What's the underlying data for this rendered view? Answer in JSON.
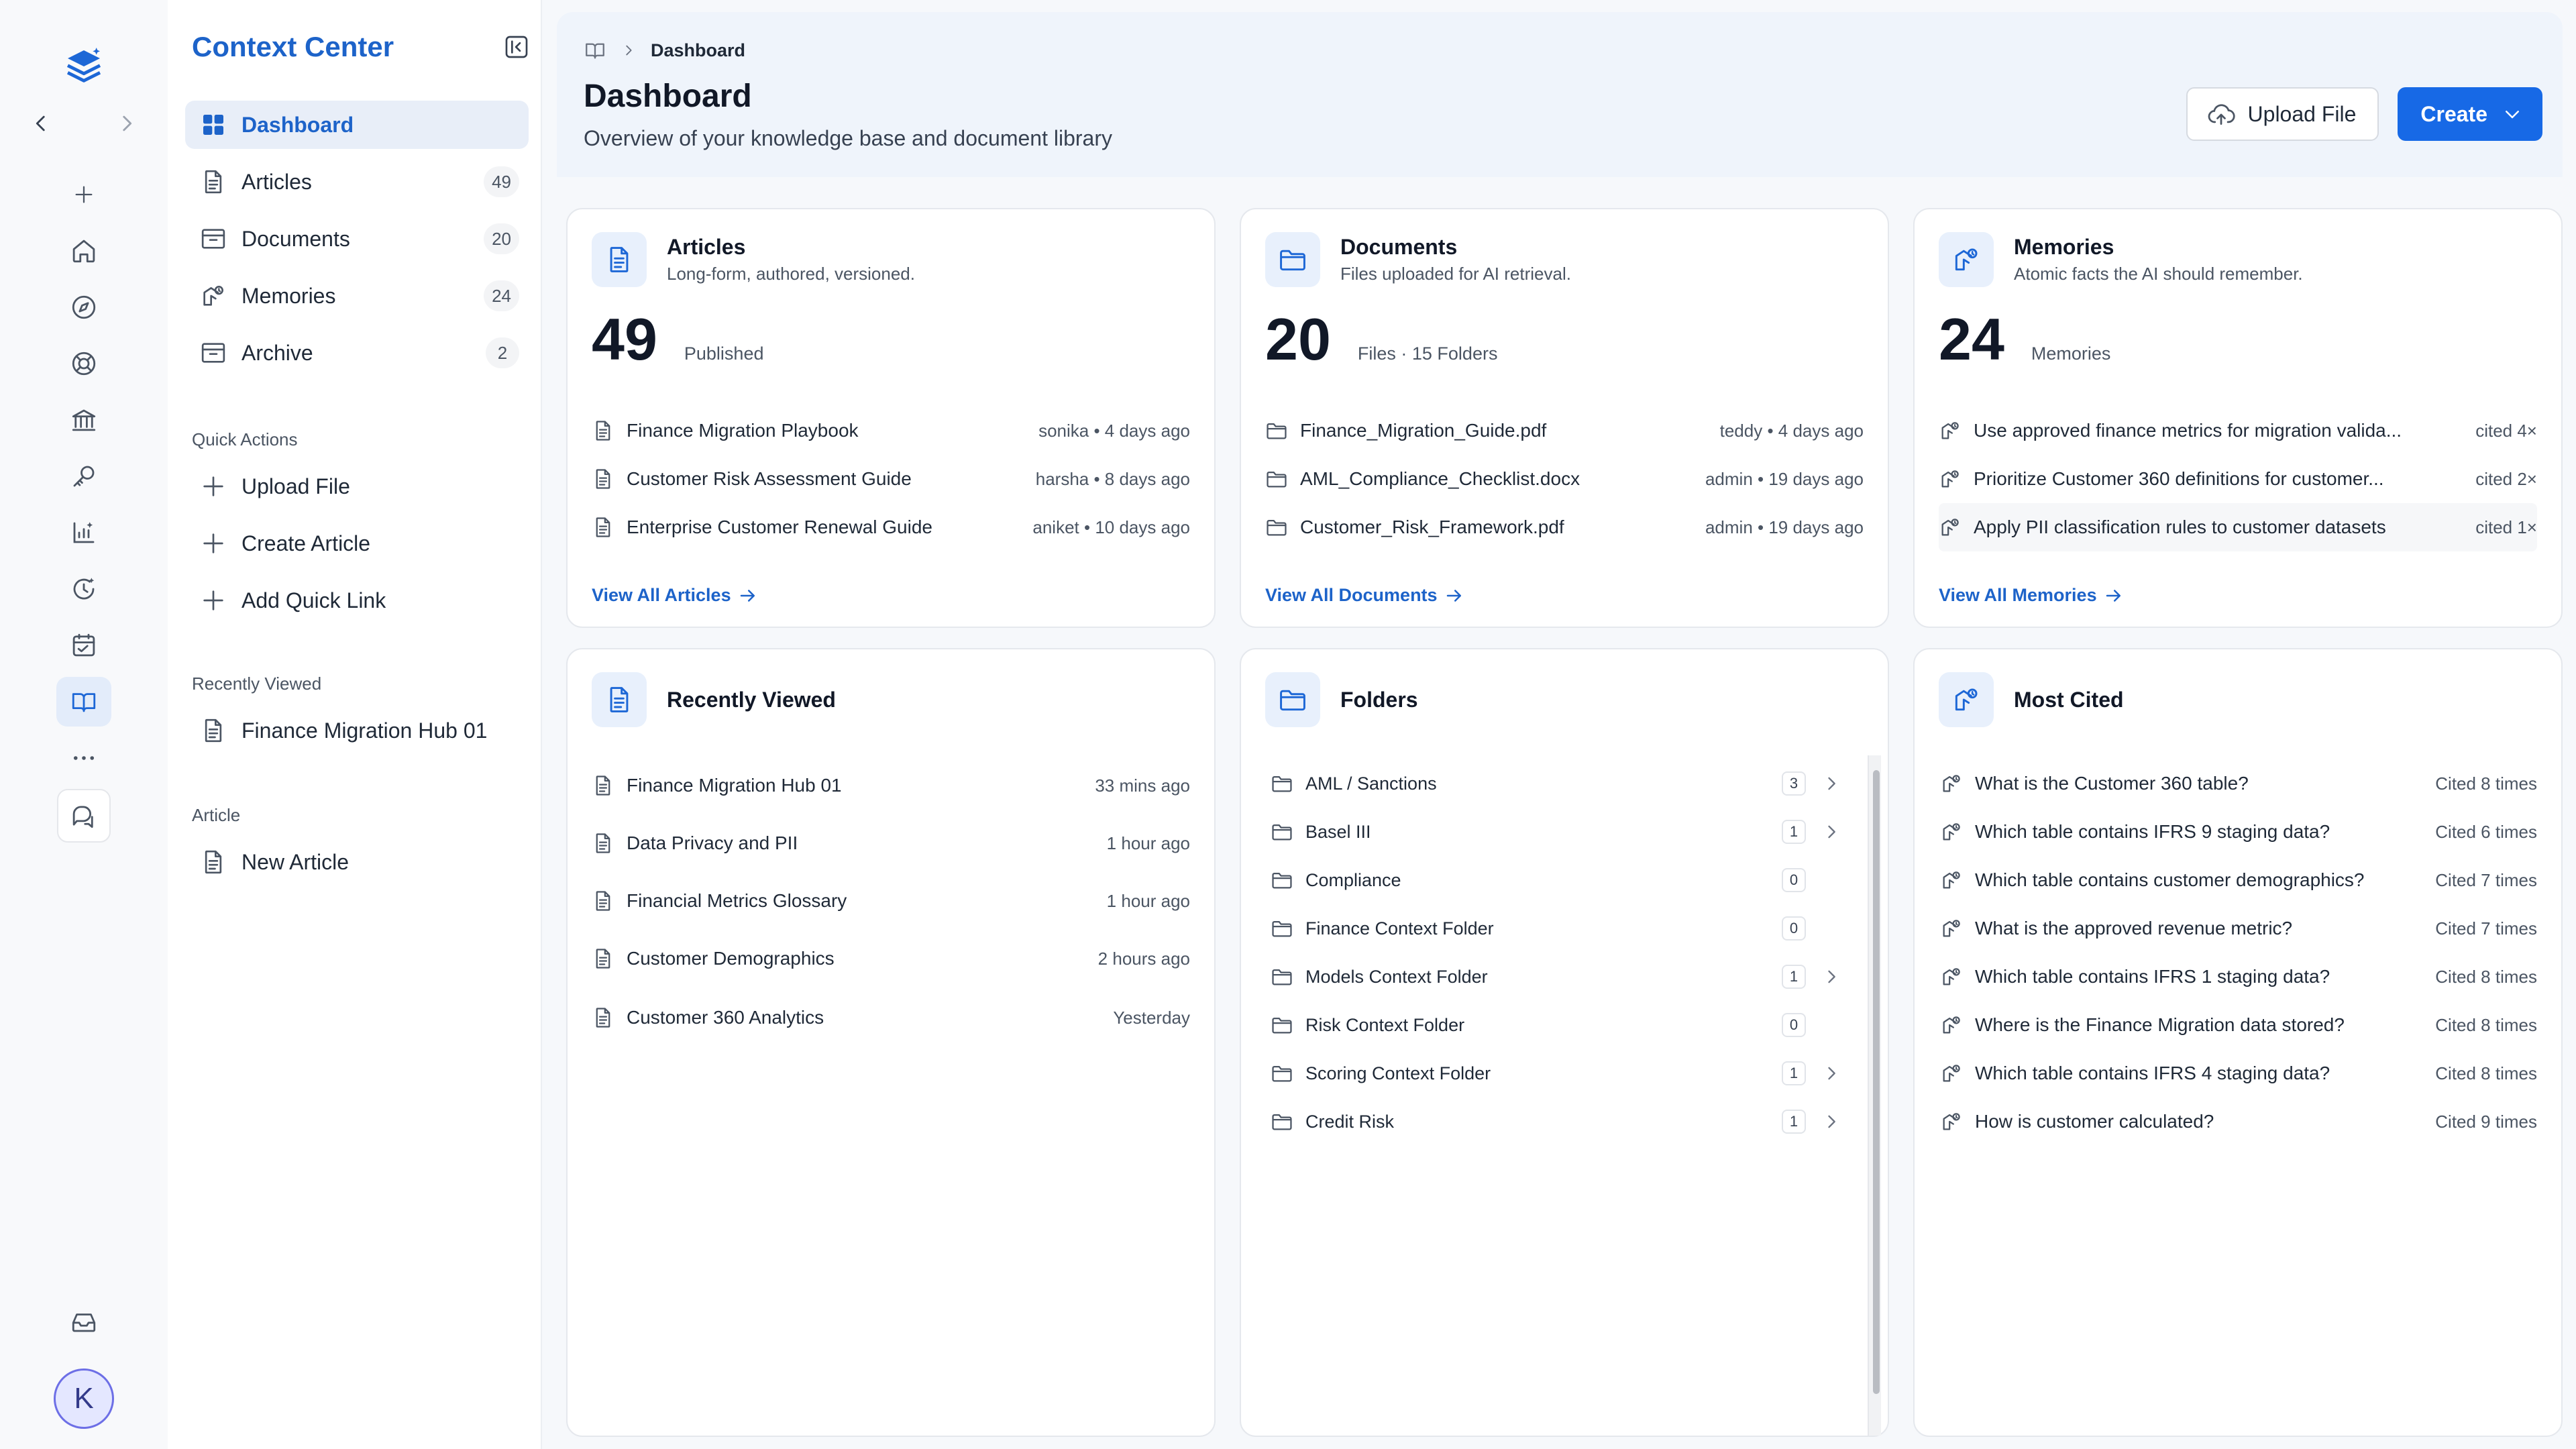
{
  "rail": {
    "logo": "stack-logo-icon",
    "icons": [
      "plus-icon",
      "home-icon",
      "compass-icon",
      "help-icon",
      "bank-icon",
      "key-icon",
      "analytics-icon",
      "history-icon",
      "calendar-icon",
      "book-icon",
      "more-icon",
      "chat-icon"
    ],
    "avatar_letter": "K",
    "bottom_icon": "inbox-icon"
  },
  "sidebar": {
    "title": "Context Center",
    "items": [
      {
        "label": "Dashboard",
        "count": ""
      },
      {
        "label": "Articles",
        "count": "49"
      },
      {
        "label": "Documents",
        "count": "20"
      },
      {
        "label": "Memories",
        "count": "24"
      },
      {
        "label": "Archive",
        "count": "2"
      }
    ],
    "quick_actions": {
      "label": "Quick Actions",
      "items": [
        "Upload File",
        "Create Article",
        "Add Quick Link"
      ]
    },
    "recently_viewed": {
      "label": "Recently Viewed",
      "items": [
        "Finance Migration Hub 01"
      ]
    },
    "article": {
      "label": "Article",
      "items": [
        "New Article"
      ]
    }
  },
  "header": {
    "breadcrumb": "Dashboard",
    "title": "Dashboard",
    "subtitle": "Overview of your knowledge base and document library",
    "upload_label": "Upload File",
    "create_label": "Create"
  },
  "articles": {
    "title": "Articles",
    "desc": "Long-form, authored, versioned.",
    "count": "49",
    "count_label": "Published",
    "rows": [
      {
        "name": "Finance Migration Playbook",
        "meta": "sonika • 4 days ago"
      },
      {
        "name": "Customer Risk Assessment Guide",
        "meta": "harsha • 8 days ago"
      },
      {
        "name": "Enterprise Customer Renewal Guide",
        "meta": "aniket • 10 days ago"
      }
    ],
    "view_all": "View All Articles"
  },
  "documents": {
    "title": "Documents",
    "desc": "Files uploaded for AI retrieval.",
    "count": "20",
    "count_label": "Files · 15 Folders",
    "rows": [
      {
        "name": "Finance_Migration_Guide.pdf",
        "meta": "teddy • 4 days ago"
      },
      {
        "name": "AML_Compliance_Checklist.docx",
        "meta": "admin • 19 days ago"
      },
      {
        "name": "Customer_Risk_Framework.pdf",
        "meta": "admin • 19 days ago"
      }
    ],
    "view_all": "View All Documents"
  },
  "memories": {
    "title": "Memories",
    "desc": "Atomic facts the AI should remember.",
    "count": "24",
    "count_label": "Memories",
    "rows": [
      {
        "name": "Use approved finance metrics for migration valida...",
        "meta": "cited 4×"
      },
      {
        "name": "Prioritize Customer 360 definitions for customer...",
        "meta": "cited 2×"
      },
      {
        "name": "Apply PII classification rules to customer datasets",
        "meta": "cited 1×"
      }
    ],
    "view_all": "View All Memories"
  },
  "recent": {
    "title": "Recently Viewed",
    "rows": [
      {
        "name": "Finance Migration Hub 01",
        "meta": "33 mins ago"
      },
      {
        "name": "Data Privacy and PII",
        "meta": "1 hour ago"
      },
      {
        "name": "Financial Metrics Glossary",
        "meta": "1 hour ago"
      },
      {
        "name": "Customer Demographics",
        "meta": "2 hours ago"
      },
      {
        "name": "Customer 360 Analytics",
        "meta": "Yesterday"
      }
    ]
  },
  "folders": {
    "title": "Folders",
    "rows": [
      {
        "name": "AML / Sanctions",
        "count": "3",
        "has_children": true
      },
      {
        "name": "Basel III",
        "count": "1",
        "has_children": true
      },
      {
        "name": "Compliance",
        "count": "0",
        "has_children": false
      },
      {
        "name": "Finance Context Folder",
        "count": "0",
        "has_children": false
      },
      {
        "name": "Models Context Folder",
        "count": "1",
        "has_children": true
      },
      {
        "name": "Risk Context Folder",
        "count": "0",
        "has_children": false
      },
      {
        "name": "Scoring Context Folder",
        "count": "1",
        "has_children": true
      },
      {
        "name": "Credit Risk",
        "count": "1",
        "has_children": true
      }
    ]
  },
  "most_cited": {
    "title": "Most Cited",
    "rows": [
      {
        "name": "What is the Customer 360 table?",
        "meta": "Cited 8 times"
      },
      {
        "name": "Which table contains IFRS 9 staging data?",
        "meta": "Cited 6 times"
      },
      {
        "name": "Which table contains customer demographics?",
        "meta": "Cited 7 times"
      },
      {
        "name": "What is the approved revenue metric?",
        "meta": "Cited 7 times"
      },
      {
        "name": "Which table contains IFRS 1 staging data?",
        "meta": "Cited 8 times"
      },
      {
        "name": "Where is the Finance Migration data stored?",
        "meta": "Cited 8 times"
      },
      {
        "name": "Which table contains IFRS 4 staging data?",
        "meta": "Cited 8 times"
      },
      {
        "name": "How is customer calculated?",
        "meta": "Cited 9 times"
      }
    ]
  }
}
